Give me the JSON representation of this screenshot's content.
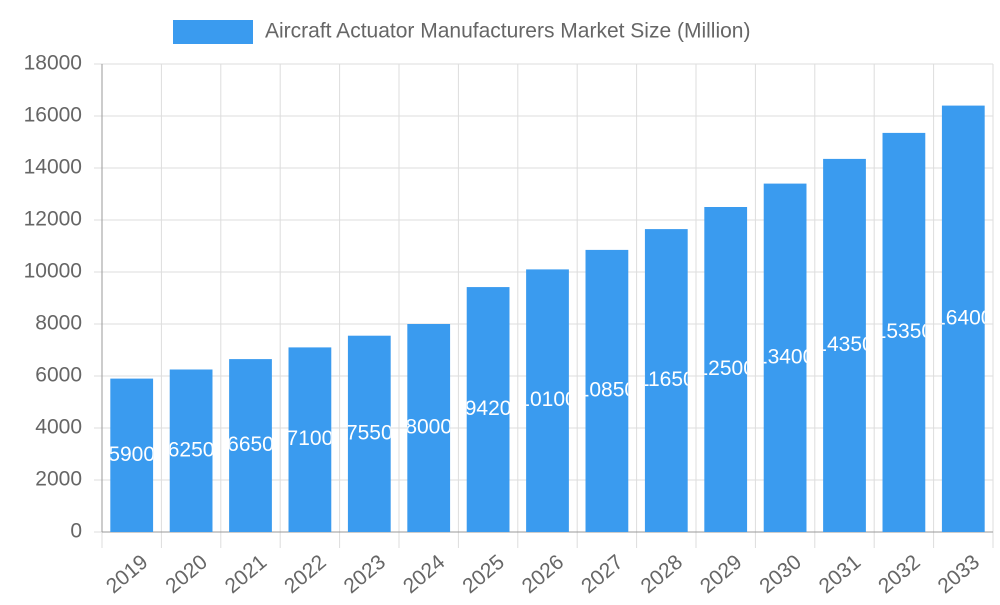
{
  "chart_data": {
    "type": "bar",
    "series": [
      {
        "name": "Aircraft Actuator Manufacturers Market Size (Million)",
        "color": "#3a9bef",
        "values": [
          5900,
          6250,
          6650,
          7100,
          7550,
          8000,
          9420,
          10100,
          10850,
          11650,
          12500,
          13400,
          14350,
          15350,
          16400
        ]
      }
    ],
    "categories": [
      "2019",
      "2020",
      "2021",
      "2022",
      "2023",
      "2024",
      "2025",
      "2026",
      "2027",
      "2028",
      "2029",
      "2030",
      "2031",
      "2032",
      "2033"
    ],
    "ylim": [
      0,
      18000
    ],
    "yticks": [
      0,
      2000,
      4000,
      6000,
      8000,
      10000,
      12000,
      14000,
      16000,
      18000
    ],
    "grid": true,
    "legend": "top"
  }
}
